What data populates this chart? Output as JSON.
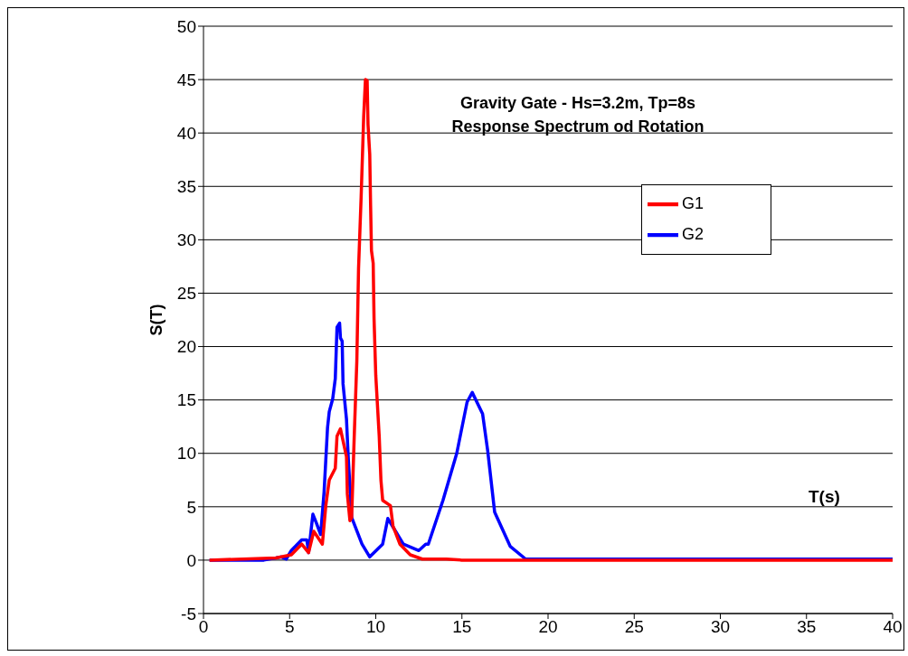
{
  "chart_data": {
    "type": "line",
    "title": "Gravity Gate - Hs=3.2m, Tp=8s",
    "subtitle": "Response Spectrum od Rotation",
    "xlabel": "T(s)",
    "ylabel": "S(T)",
    "xlim": [
      0,
      40
    ],
    "xticks": [
      0,
      5,
      10,
      15,
      20,
      25,
      30,
      35,
      40
    ],
    "ylim": [
      -5,
      50
    ],
    "yticks": [
      -5,
      0,
      5,
      10,
      15,
      20,
      25,
      30,
      35,
      40,
      45,
      50
    ],
    "grid": "y",
    "legend": "right",
    "marker": "none",
    "line_style": "solid",
    "series": [
      {
        "name": "G2",
        "color": "#0000ff",
        "x": [
          0.35,
          3.5,
          3.8,
          4.2,
          4.5,
          4.8,
          5.1,
          5.7,
          6,
          6.1,
          6.35,
          6.55,
          6.8,
          7,
          7.1,
          7.2,
          7.3,
          7.5,
          7.65,
          7.75,
          7.9,
          7.95,
          8.05,
          8.1,
          8.3,
          8.4,
          8.6,
          9.2,
          9.65,
          10.4,
          10.7,
          11.15,
          11.6,
          12.5,
          12.9,
          13.05,
          13.9,
          14.7,
          15.3,
          15.6,
          16.2,
          16.5,
          16.9,
          17.8,
          18.7,
          20,
          30,
          40
        ],
        "values": [
          0,
          0,
          0.1,
          0.2,
          0.3,
          0.1,
          0.9,
          1.9,
          1.9,
          0.7,
          4.3,
          3.5,
          2.4,
          6.4,
          9.4,
          12.4,
          13.9,
          15.1,
          17,
          21.8,
          22.2,
          20.8,
          20.5,
          16.5,
          13.2,
          9.7,
          4,
          1.5,
          0.3,
          1.5,
          3.9,
          2.7,
          1.5,
          0.9,
          1.5,
          1.5,
          5.6,
          10,
          14.8,
          15.7,
          13.7,
          10.2,
          4.5,
          1.3,
          0.1,
          0.1,
          0.1,
          0.1
        ]
      },
      {
        "name": "G1",
        "color": "#ff0000",
        "x": [
          0.35,
          4.2,
          5.1,
          5.7,
          6.1,
          6.4,
          6.9,
          7.1,
          7.3,
          7.65,
          7.75,
          7.95,
          8.3,
          8.35,
          8.5,
          8.6,
          8.75,
          8.9,
          9.0,
          9.15,
          9.3,
          9.4,
          9.5,
          9.55,
          9.65,
          9.7,
          9.75,
          9.85,
          9.9,
          10,
          10.2,
          10.3,
          10.4,
          10.85,
          11,
          11.4,
          12,
          12.7,
          14.1,
          15,
          20,
          30,
          40
        ],
        "values": [
          0,
          0.2,
          0.5,
          1.5,
          0.7,
          2.7,
          1.5,
          5.1,
          7.5,
          8.6,
          11.6,
          12.3,
          9.7,
          6.2,
          3.7,
          4,
          11.6,
          18.6,
          27.3,
          34,
          41.6,
          45,
          44.9,
          40.8,
          38,
          33.2,
          29,
          27.8,
          22.6,
          17.3,
          11.6,
          7.5,
          5.6,
          5.1,
          3.2,
          1.5,
          0.5,
          0.1,
          0.1,
          0,
          0,
          0,
          0
        ]
      }
    ]
  }
}
